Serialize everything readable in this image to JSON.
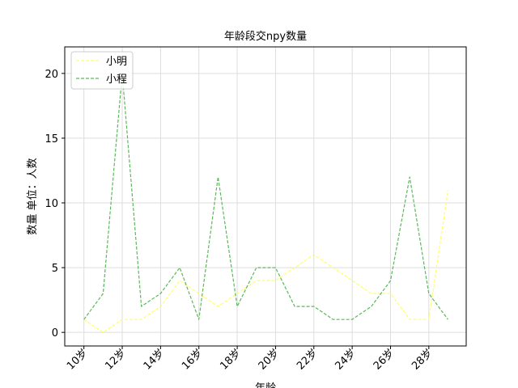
{
  "chart_data": {
    "type": "line",
    "title": "年龄段交npy数量",
    "xlabel": "年龄",
    "ylabel": "数量 单位：人数",
    "x": [
      10,
      11,
      12,
      13,
      14,
      15,
      16,
      17,
      18,
      19,
      20,
      21,
      22,
      23,
      24,
      25,
      26,
      27,
      28,
      29
    ],
    "xticks": [
      10,
      12,
      14,
      16,
      18,
      20,
      22,
      24,
      26,
      28
    ],
    "xtick_labels": [
      "10岁",
      "12岁",
      "14岁",
      "16岁",
      "18岁",
      "20岁",
      "22岁",
      "24岁",
      "26岁",
      "28岁"
    ],
    "xlim": [
      9.0,
      29.95
    ],
    "yticks": [
      0,
      5,
      10,
      15,
      20
    ],
    "ytick_labels": [
      "0",
      "5",
      "10",
      "15",
      "20"
    ],
    "ylim": [
      -1.05,
      22.05
    ],
    "grid": true,
    "legend_position": "upper-left",
    "series": [
      {
        "name": "小明",
        "color": "#ffff66",
        "style": "dashed",
        "values": [
          1,
          0,
          1,
          1,
          2,
          4,
          3,
          2,
          3,
          4,
          4,
          5,
          6,
          5,
          4,
          3,
          3,
          1,
          1,
          11
        ]
      },
      {
        "name": "小程",
        "color": "#5cb85c",
        "style": "dashed",
        "values": [
          1,
          3,
          20,
          2,
          3,
          5,
          1,
          12,
          2,
          5,
          5,
          2,
          2,
          1,
          1,
          2,
          4,
          12,
          3,
          1
        ]
      }
    ]
  }
}
